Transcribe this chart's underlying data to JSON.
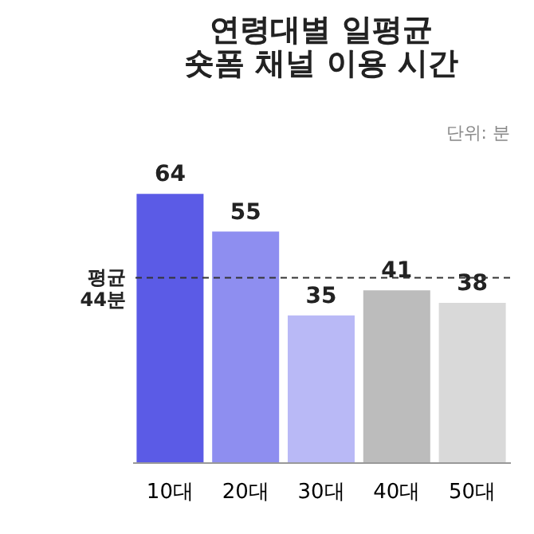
{
  "chart_data": {
    "type": "bar",
    "title": "연령대별 일평균\n숏폼 채널 이용 시간",
    "categories": [
      "10대",
      "20대",
      "30대",
      "40대",
      "50대"
    ],
    "values": [
      64,
      55,
      35,
      41,
      38
    ],
    "colors": [
      "#5b5be6",
      "#8e8ef0",
      "#b9b9f6",
      "#bcbcbc",
      "#d9d9d9"
    ],
    "data_labels": true,
    "ref_lines": [
      {
        "axis": "y",
        "value": 44,
        "label": "평균\n44분",
        "color": "#333333",
        "line_style": "dashed"
      }
    ],
    "annotations": [
      "단위: 분"
    ]
  }
}
